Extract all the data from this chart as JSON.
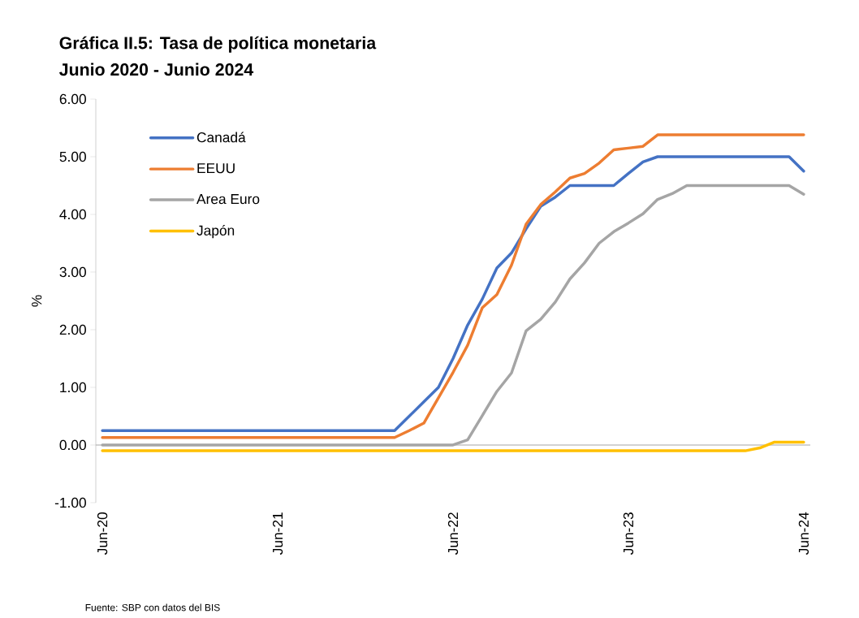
{
  "chart_data": {
    "type": "line",
    "title": "Gráfica II.5:  Tasa de política monetaria",
    "subtitle": "Junio 2020  -  Junio 2024",
    "ylabel": "%",
    "annotations": [
      "Fuente: SBP con datos del BIS"
    ],
    "categories": [
      "Jun-20",
      null,
      null,
      null,
      null,
      null,
      null,
      null,
      null,
      null,
      null,
      null,
      "Jun-21",
      null,
      null,
      null,
      null,
      null,
      null,
      null,
      null,
      null,
      null,
      null,
      "Jun-22",
      null,
      null,
      null,
      null,
      null,
      null,
      null,
      null,
      null,
      null,
      null,
      "Jun-23",
      null,
      null,
      null,
      null,
      null,
      null,
      null,
      null,
      null,
      null,
      null,
      "Jun-24"
    ],
    "series": [
      {
        "name": "Canadá",
        "color": "#4472c4",
        "values": [
          0.25,
          0.25,
          0.25,
          0.25,
          0.25,
          0.25,
          0.25,
          0.25,
          0.25,
          0.25,
          0.25,
          0.25,
          0.25,
          0.25,
          0.25,
          0.25,
          0.25,
          0.25,
          0.25,
          0.25,
          0.25,
          0.5,
          0.75,
          1.0,
          1.5,
          2.08,
          2.53,
          3.07,
          3.33,
          3.75,
          4.14,
          4.3,
          4.5,
          4.5,
          4.5,
          4.5,
          4.71,
          4.91,
          5.0,
          5.0,
          5.0,
          5.0,
          5.0,
          5.0,
          5.0,
          5.0,
          5.0,
          5.0,
          4.75
        ]
      },
      {
        "name": "EEUU",
        "color": "#ed7d31",
        "values": [
          0.13,
          0.13,
          0.13,
          0.13,
          0.13,
          0.13,
          0.13,
          0.13,
          0.13,
          0.13,
          0.13,
          0.13,
          0.13,
          0.13,
          0.13,
          0.13,
          0.13,
          0.13,
          0.13,
          0.13,
          0.13,
          0.25,
          0.38,
          0.82,
          1.26,
          1.73,
          2.38,
          2.61,
          3.12,
          3.83,
          4.17,
          4.39,
          4.63,
          4.71,
          4.89,
          5.12,
          5.15,
          5.18,
          5.38,
          5.38,
          5.38,
          5.38,
          5.38,
          5.38,
          5.38,
          5.38,
          5.38,
          5.38,
          5.38
        ]
      },
      {
        "name": "Area Euro",
        "color": "#a5a5a5",
        "values": [
          0,
          0,
          0,
          0,
          0,
          0,
          0,
          0,
          0,
          0,
          0,
          0,
          0,
          0,
          0,
          0,
          0,
          0,
          0,
          0,
          0,
          0,
          0,
          0,
          0,
          0.09,
          0.51,
          0.93,
          1.25,
          1.98,
          2.18,
          2.48,
          2.88,
          3.16,
          3.5,
          3.7,
          3.85,
          4.01,
          4.26,
          4.36,
          4.5,
          4.5,
          4.5,
          4.5,
          4.5,
          4.5,
          4.5,
          4.5,
          4.35
        ]
      },
      {
        "name": "Japón",
        "color": "#ffc000",
        "values": [
          -0.1,
          -0.1,
          -0.1,
          -0.1,
          -0.1,
          -0.1,
          -0.1,
          -0.1,
          -0.1,
          -0.1,
          -0.1,
          -0.1,
          -0.1,
          -0.1,
          -0.1,
          -0.1,
          -0.1,
          -0.1,
          -0.1,
          -0.1,
          -0.1,
          -0.1,
          -0.1,
          -0.1,
          -0.1,
          -0.1,
          -0.1,
          -0.1,
          -0.1,
          -0.1,
          -0.1,
          -0.1,
          -0.1,
          -0.1,
          -0.1,
          -0.1,
          -0.1,
          -0.1,
          -0.1,
          -0.1,
          -0.1,
          -0.1,
          -0.1,
          -0.1,
          -0.1,
          -0.05,
          0.05,
          0.05,
          0.05
        ]
      }
    ],
    "ylim": [
      -1,
      6
    ],
    "yticks": [
      {
        "value": -1,
        "label": "-1.00"
      },
      {
        "value": 0,
        "label": "0.00"
      },
      {
        "value": 1,
        "label": "1.00"
      },
      {
        "value": 2,
        "label": "2.00"
      },
      {
        "value": 3,
        "label": "3.00"
      },
      {
        "value": 4,
        "label": "4.00"
      },
      {
        "value": 5,
        "label": "5.00"
      },
      {
        "value": 6,
        "label": "6.00"
      }
    ],
    "legend": "top left",
    "marker": "none",
    "line_style": "solid"
  }
}
